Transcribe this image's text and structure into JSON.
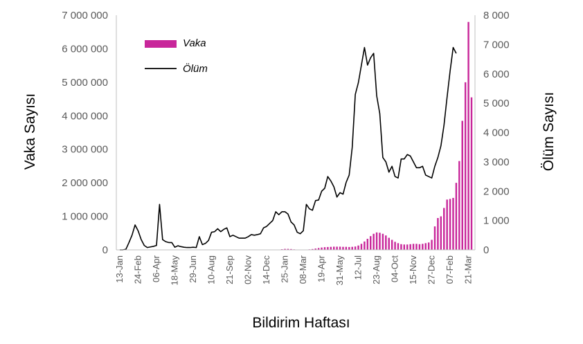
{
  "chart_data": {
    "type": "bar+line",
    "xlabel": "Bildirim Haftası",
    "ylabel_left": "Vaka Sayısı",
    "ylabel_right": "Ölüm Sayısı",
    "ylim_left": [
      0,
      7000000
    ],
    "ylim_right": [
      0,
      8000
    ],
    "y_ticks_left": [
      "0",
      "1 000 000",
      "2 000 000",
      "3 000 000",
      "4 000 000",
      "5 000 000",
      "6 000 000",
      "7 000 000"
    ],
    "y_ticks_right": [
      "0",
      "1 000",
      "2 000",
      "3 000",
      "4 000",
      "5 000",
      "6 000",
      "7 000",
      "8 000"
    ],
    "x_ticks": [
      "13-Jan",
      "24-Feb",
      "06-Apr",
      "18-May",
      "29-Jun",
      "10-Aug",
      "21-Sep",
      "02-Nov",
      "14-Dec",
      "25-Jan",
      "08-Mar",
      "19-Apr",
      "31-May",
      "12-Jul",
      "23-Aug",
      "04-Oct",
      "15-Nov",
      "27-Dec",
      "07-Feb",
      "21-Mar"
    ],
    "x_tick_weeks": [
      0,
      6,
      12,
      18,
      24,
      30,
      36,
      42,
      48,
      54,
      60,
      66,
      72,
      78,
      84,
      90,
      96,
      102,
      108,
      114
    ],
    "legend": {
      "position": "top-left",
      "bar_label": "Vaka",
      "line_label": "Ölüm"
    },
    "colors": {
      "bar": "#c8269a",
      "line": "#000000",
      "axis": "#bfbfbf"
    },
    "grid": false,
    "series": [
      {
        "name": "Vaka",
        "type": "bar",
        "axis": "left",
        "values": [
          0,
          0,
          0,
          0,
          0,
          0,
          0,
          0,
          0,
          0,
          0,
          0,
          0,
          0,
          0,
          0,
          0,
          0,
          0,
          0,
          0,
          0,
          0,
          0,
          0,
          0,
          0,
          0,
          0,
          0,
          0,
          0,
          0,
          0,
          0,
          0,
          0,
          0,
          0,
          0,
          0,
          0,
          0,
          0,
          0,
          0,
          0,
          0,
          0,
          0,
          0,
          0,
          0,
          20000,
          30000,
          30000,
          25000,
          15000,
          5000,
          0,
          0,
          0,
          15000,
          25000,
          40000,
          55000,
          70000,
          80000,
          85000,
          90000,
          95000,
          95000,
          95000,
          90000,
          90000,
          85000,
          90000,
          100000,
          130000,
          180000,
          250000,
          330000,
          410000,
          480000,
          520000,
          510000,
          480000,
          430000,
          360000,
          300000,
          240000,
          200000,
          170000,
          160000,
          160000,
          170000,
          180000,
          180000,
          170000,
          180000,
          200000,
          220000,
          300000,
          700000,
          950000,
          1000000,
          1250000,
          1500000,
          1520000,
          1550000,
          2000000,
          2650000,
          3850000,
          5000000,
          6800000,
          4550000
        ]
      },
      {
        "name": "Ölüm",
        "type": "line",
        "axis": "right",
        "values": [
          0,
          0,
          20,
          250,
          500,
          850,
          650,
          350,
          150,
          80,
          100,
          120,
          150,
          1550,
          350,
          280,
          250,
          250,
          90,
          140,
          110,
          90,
          80,
          80,
          90,
          80,
          450,
          180,
          220,
          320,
          600,
          620,
          720,
          620,
          700,
          750,
          450,
          500,
          450,
          400,
          400,
          400,
          450,
          520,
          500,
          520,
          550,
          750,
          800,
          900,
          1000,
          1300,
          1200,
          1300,
          1300,
          1220,
          950,
          850,
          600,
          550,
          650,
          1550,
          1400,
          1350,
          1680,
          1700,
          2000,
          2100,
          2500,
          2350,
          2150,
          1800,
          1950,
          1900,
          2300,
          2550,
          3500,
          5300,
          5700,
          6300,
          6900,
          6300,
          6550,
          6700,
          5250,
          4650,
          3150,
          3000,
          2650,
          2850,
          2500,
          2450,
          3100,
          3100,
          3250,
          3200,
          3000,
          2800,
          2800,
          2850,
          2550,
          2500,
          2450,
          2850,
          3150,
          3550,
          4250,
          5200,
          6100,
          6900,
          6700
        ]
      }
    ]
  }
}
